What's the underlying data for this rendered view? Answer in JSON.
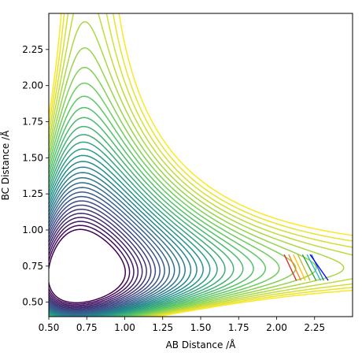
{
  "chart_data": {
    "type": "contour",
    "title": "",
    "xlabel": "AB Distance /Å",
    "ylabel": "BC Distance /Å",
    "xlim": [
      0.5,
      2.5
    ],
    "ylim": [
      0.4,
      2.5
    ],
    "x_ticks": [
      {
        "value": 0.5,
        "label": "0.50"
      },
      {
        "value": 0.75,
        "label": "0.75"
      },
      {
        "value": 1.0,
        "label": "1.00"
      },
      {
        "value": 1.25,
        "label": "1.25"
      },
      {
        "value": 1.5,
        "label": "1.50"
      },
      {
        "value": 1.75,
        "label": "1.75"
      },
      {
        "value": 2.0,
        "label": "2.00"
      },
      {
        "value": 2.25,
        "label": "2.25"
      }
    ],
    "y_ticks": [
      {
        "value": 0.5,
        "label": "0.50"
      },
      {
        "value": 0.75,
        "label": "0.75"
      },
      {
        "value": 1.0,
        "label": "1.00"
      },
      {
        "value": 1.25,
        "label": "1.25"
      },
      {
        "value": 1.5,
        "label": "1.50"
      },
      {
        "value": 1.75,
        "label": "1.75"
      },
      {
        "value": 2.0,
        "label": "2.00"
      },
      {
        "value": 2.25,
        "label": "2.25"
      }
    ],
    "colormap": "viridis",
    "colormap_stops": [
      "#440154",
      "#3b528b",
      "#21918c",
      "#5ec962",
      "#fde725"
    ],
    "grid": false,
    "legend": "none",
    "contours": {
      "count": 32,
      "x_min": 0.95,
      "y_min": 0.95,
      "rb": [
        0.74,
        0.74
      ],
      "level_max": 5.0
    },
    "extra_trajectory_lines": {
      "colors": [
        "#d62728",
        "#ff7f0e",
        "#ffbf00",
        "#bcbd22",
        "#2ca02c",
        "#17becf",
        "#1f77b4",
        "#0000ff"
      ],
      "x_start": [
        2.05,
        2.08,
        2.11,
        2.14,
        2.17,
        2.2,
        2.23,
        2.22
      ],
      "x_end": [
        2.13,
        2.16,
        2.19,
        2.22,
        2.26,
        2.29,
        2.31,
        2.34
      ],
      "y_start": 0.83,
      "y_end": 0.65
    }
  }
}
